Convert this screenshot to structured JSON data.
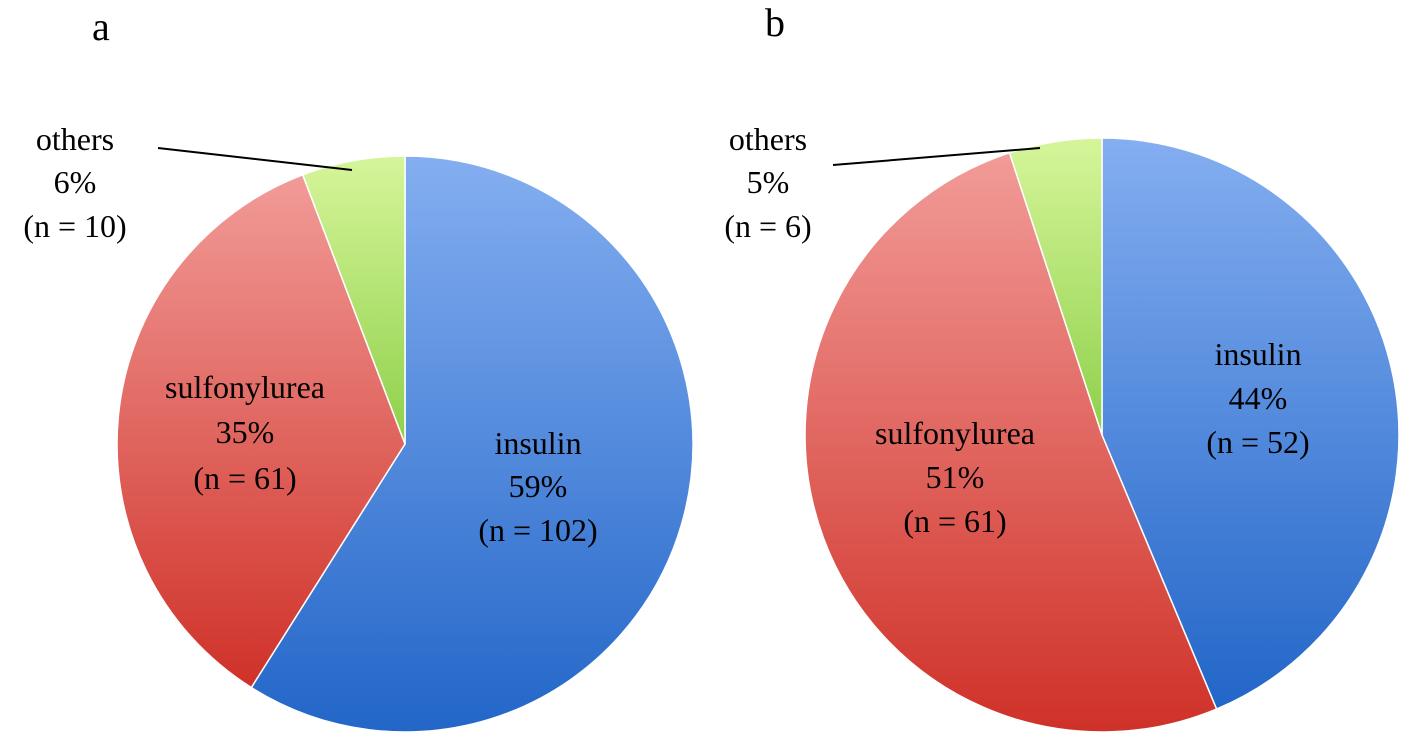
{
  "chart_data": [
    {
      "type": "pie",
      "panel_label": "a",
      "slices": [
        {
          "name": "insulin",
          "percent_label": "59%",
          "count_label": "(n = 102)",
          "value": 102,
          "color": "#4f86d9"
        },
        {
          "name": "sulfonylurea",
          "percent_label": "35%",
          "count_label": "(n = 61)",
          "value": 61,
          "color": "#e25b55"
        },
        {
          "name": "others",
          "percent_label": "6%",
          "count_label": "(n = 10)",
          "value": 10,
          "color": "#b3e070"
        }
      ]
    },
    {
      "type": "pie",
      "panel_label": "b",
      "slices": [
        {
          "name": "insulin",
          "percent_label": "44%",
          "count_label": "(n = 52)",
          "value": 52,
          "color": "#4f86d9"
        },
        {
          "name": "sulfonylurea",
          "percent_label": "51%",
          "count_label": "(n = 61)",
          "value": 61,
          "color": "#e25b55"
        },
        {
          "name": "others",
          "percent_label": "5%",
          "count_label": "(n = 6)",
          "value": 6,
          "color": "#b3e070"
        }
      ]
    }
  ]
}
